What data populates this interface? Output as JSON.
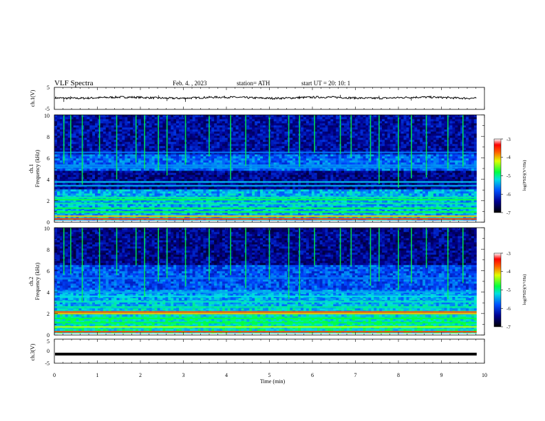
{
  "header": {
    "title": "VLF  Spectra",
    "date": "Feb. 4.  , 2023",
    "station": "station= ATH",
    "start": "start  UT  =    20: 10: 1"
  },
  "chart_data": [
    {
      "type": "line",
      "name": "ch1-waveform",
      "ylabel": "ch.1(V)",
      "ylim": [
        -5,
        5
      ],
      "y_ticks": [
        "5",
        "-5"
      ],
      "xlim": [
        0,
        10
      ],
      "baseline": 0.3,
      "spikes": [
        {
          "x": 0.22,
          "y": -1.6
        },
        {
          "x": 0.38,
          "y": 1.0
        },
        {
          "x": 2.42,
          "y": 1.4
        },
        {
          "x": 2.62,
          "y": -1.2
        },
        {
          "x": 3.05,
          "y": -1.6
        },
        {
          "x": 5.7,
          "y": 1.1
        },
        {
          "x": 6.65,
          "y": 1.6
        },
        {
          "x": 7.55,
          "y": 1.2
        },
        {
          "x": 8.3,
          "y": -1.0
        },
        {
          "x": 9.15,
          "y": 1.0
        }
      ]
    },
    {
      "type": "heatmap",
      "name": "ch1-spectrogram",
      "ylabel_lines": [
        "ch.1",
        "Frequency  (kHz)"
      ],
      "ylim": [
        0,
        10
      ],
      "y_ticks": [
        "0",
        "2",
        "4",
        "6",
        "8",
        "10"
      ],
      "xlim": [
        0,
        10
      ],
      "colorbar": {
        "label": "log(PSD)(V²/Hz)",
        "range": [
          -7,
          -3
        ],
        "ticks": [
          "-3",
          "-4",
          "-5",
          "-6",
          "-7"
        ]
      },
      "bands": [
        {
          "f": 0.3,
          "level": -3.8
        },
        {
          "f": 0.55,
          "level": -4.3
        },
        {
          "f": 0.95,
          "level": -5.0
        },
        {
          "f": 1.3,
          "level": -5.0
        },
        {
          "f": 1.75,
          "level": -5.2
        },
        {
          "f": 2.1,
          "level": -5.0
        },
        {
          "f": 2.3,
          "level": -5.2
        },
        {
          "f": 3.4,
          "level": -5.6
        },
        {
          "f": 3.75,
          "level": -5.5
        },
        {
          "f": 5.1,
          "level": -5.7
        },
        {
          "f": 5.3,
          "level": -5.7
        },
        {
          "f": 6.5,
          "level": -5.8
        }
      ],
      "spherics_min": [
        0.22,
        0.38,
        0.65,
        1.05,
        1.45,
        1.9,
        2.1,
        2.42,
        2.62,
        3.05,
        3.6,
        4.1,
        4.45,
        5.0,
        5.45,
        5.7,
        6.05,
        6.65,
        6.9,
        7.35,
        7.55,
        8.0,
        8.3,
        8.65,
        9.15,
        9.5
      ]
    },
    {
      "type": "heatmap",
      "name": "ch2-spectrogram",
      "ylabel_lines": [
        "ch.2",
        "Frequency  (kHz)"
      ],
      "ylim": [
        0,
        10
      ],
      "y_ticks": [
        "0",
        "2",
        "4",
        "6",
        "8",
        "10"
      ],
      "xlim": [
        0,
        10
      ],
      "colorbar": {
        "label": "log(PSD)(V²/Hz)",
        "range": [
          -7,
          -3
        ],
        "ticks": [
          "-3",
          "-4",
          "-5",
          "-6",
          "-7"
        ]
      },
      "bands": [
        {
          "f": 0.3,
          "level": -3.8
        },
        {
          "f": 0.75,
          "level": -4.6
        },
        {
          "f": 1.15,
          "level": -5.0
        },
        {
          "f": 1.55,
          "level": -5.0
        },
        {
          "f": 2.0,
          "level": -4.3
        },
        {
          "f": 2.15,
          "level": -3.9
        },
        {
          "f": 2.6,
          "level": -5.2
        },
        {
          "f": 3.1,
          "level": -5.3
        },
        {
          "f": 3.6,
          "level": -5.4
        },
        {
          "f": 4.0,
          "level": -5.6
        },
        {
          "f": 5.3,
          "level": -5.8
        }
      ],
      "spherics_min": [
        0.22,
        0.38,
        0.65,
        1.05,
        1.45,
        1.9,
        2.1,
        2.42,
        2.62,
        3.05,
        3.6,
        4.1,
        4.45,
        5.0,
        5.45,
        5.7,
        6.05,
        6.65,
        6.9,
        7.35,
        7.55,
        8.0,
        8.3,
        8.65,
        9.15,
        9.5
      ]
    },
    {
      "type": "line",
      "name": "ch3-waveform",
      "ylabel": "ch.3(V)",
      "ylim": [
        -5,
        5
      ],
      "y_ticks": [
        "5",
        "0",
        "-5"
      ],
      "xlim": [
        0,
        10
      ],
      "baseline": -1.2
    }
  ],
  "x_axis": {
    "label": "Time  (min)",
    "ticks": [
      "0",
      "1",
      "2",
      "3",
      "4",
      "5",
      "6",
      "7",
      "8",
      "9",
      "10"
    ],
    "data_end": 9.82
  },
  "colors": {
    "background_low": "#000020",
    "mid": "#0a3cff",
    "high": "#ff0000"
  }
}
